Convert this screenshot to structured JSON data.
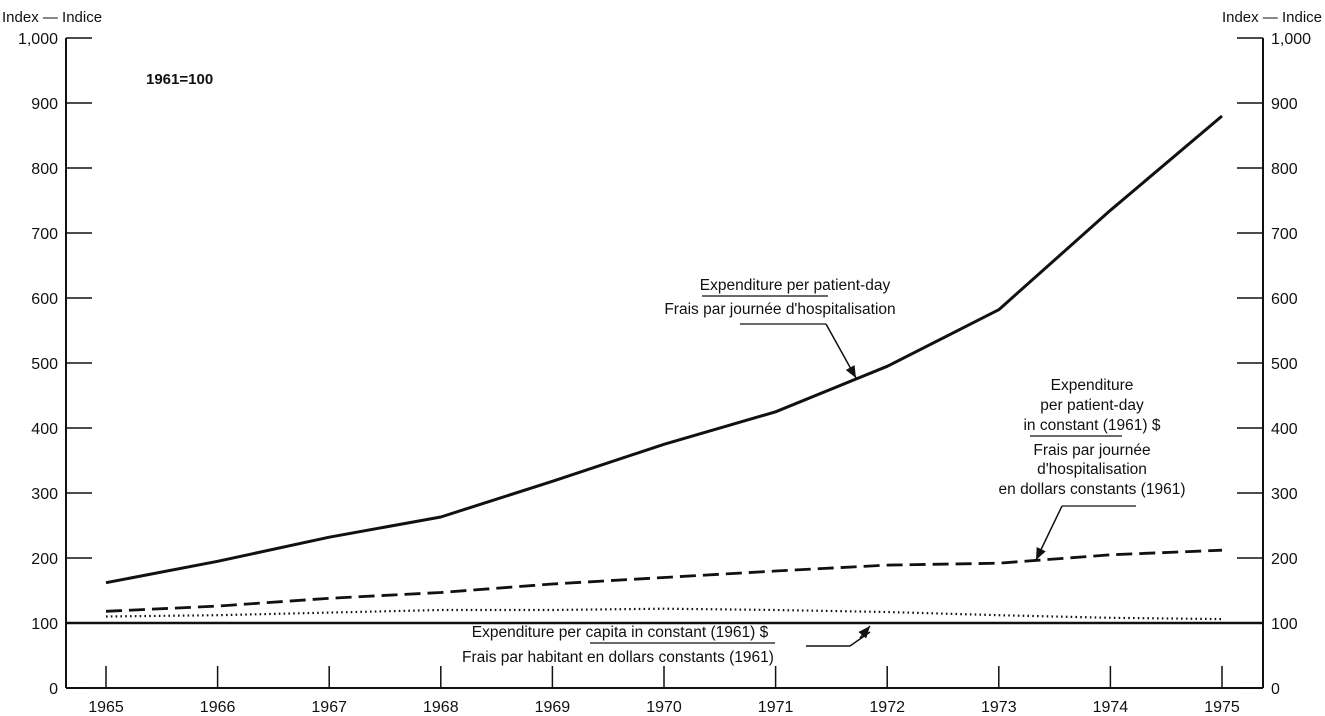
{
  "chart_data": {
    "type": "line",
    "title": "",
    "base_label": "1961=100",
    "axis_title_left": "Index — Indice",
    "axis_title_right": "Index — Indice",
    "xlabel": "",
    "x": [
      1965,
      1966,
      1967,
      1968,
      1969,
      1970,
      1971,
      1972,
      1973,
      1974,
      1975
    ],
    "x_tick_labels": [
      "1965",
      "1966",
      "1967",
      "1968",
      "1969",
      "1970",
      "1971",
      "1972",
      "1973",
      "1974",
      "1975"
    ],
    "ylim": [
      0,
      1000
    ],
    "y_ticks": [
      0,
      100,
      200,
      300,
      400,
      500,
      600,
      700,
      800,
      900,
      1000
    ],
    "y_tick_labels": [
      "0",
      "100",
      "200",
      "300",
      "400",
      "500",
      "600",
      "700",
      "800",
      "900",
      "1,000"
    ],
    "grid": false,
    "reference_line": {
      "y": 100
    },
    "series": [
      {
        "key": "per_patient_day",
        "style": "solid",
        "values": [
          162,
          195,
          232,
          263,
          318,
          375,
          425,
          495,
          582,
          735,
          880
        ],
        "label_lines_en": [
          "Expenditure per patient-day"
        ],
        "label_lines_fr": [
          "Frais par journée d'hospitalisation"
        ]
      },
      {
        "key": "per_patient_day_constant",
        "style": "dashed",
        "values": [
          118,
          126,
          138,
          147,
          160,
          170,
          180,
          189,
          192,
          205,
          212
        ],
        "label_lines_en": [
          "Expenditure",
          "per patient-day",
          "in constant (1961) $"
        ],
        "label_lines_fr": [
          "Frais par journée",
          "d'hospitalisation",
          "en dollars constants (1961)"
        ]
      },
      {
        "key": "per_capita_constant",
        "style": "dotted",
        "values": [
          110,
          112,
          116,
          120,
          120,
          122,
          120,
          117,
          112,
          108,
          106
        ],
        "label_lines_en": [
          "Expenditure per capita in constant (1961) $"
        ],
        "label_lines_fr": [
          "Frais par habitant en dollars constants (1961)"
        ]
      }
    ]
  }
}
